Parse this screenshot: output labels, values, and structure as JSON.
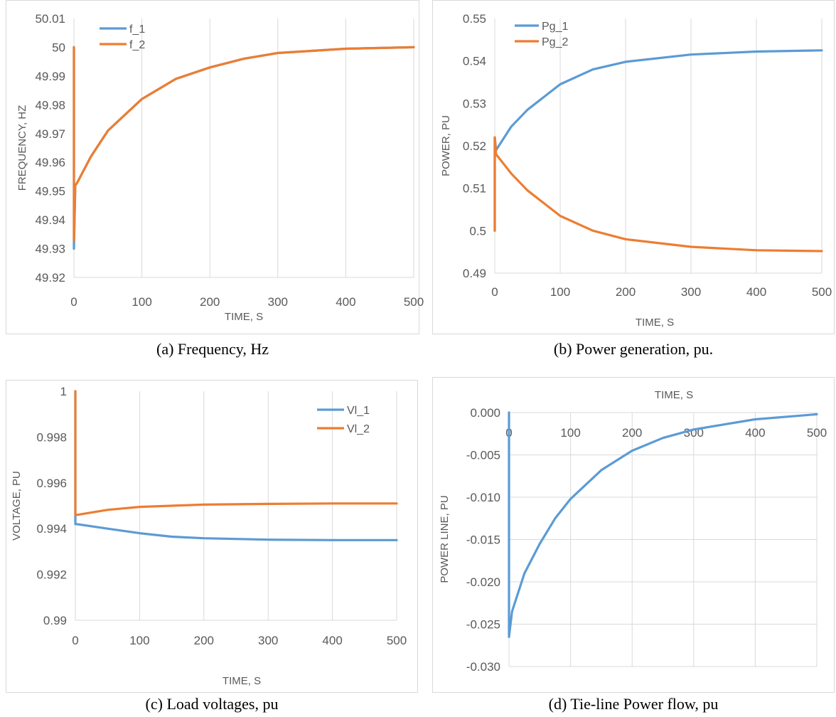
{
  "chart_data": [
    {
      "id": "a",
      "type": "line",
      "caption": "(a) Frequency, Hz",
      "xlabel": "TIME, S",
      "ylabel": "FREQUENCY, HZ",
      "xlim": [
        0,
        500
      ],
      "ylim": [
        49.92,
        50.01
      ],
      "xticks": [
        0,
        100,
        200,
        300,
        400,
        500
      ],
      "yticks": [
        49.92,
        49.93,
        49.94,
        49.95,
        49.96,
        49.97,
        49.98,
        49.99,
        50,
        50.01
      ],
      "xtick_labels": [
        "0",
        "100",
        "200",
        "300",
        "400",
        "500"
      ],
      "ytick_labels": [
        "49.92",
        "49.93",
        "49.94",
        "49.95",
        "49.96",
        "49.97",
        "49.98",
        "49.99",
        "50",
        "50.01"
      ],
      "grid": "vertical",
      "legend": "top-left",
      "series": [
        {
          "name": "f_1",
          "color": "#5B9BD5",
          "x": [
            0,
            0,
            2,
            5,
            25,
            50,
            100,
            150,
            200,
            250,
            300,
            400,
            500
          ],
          "y": [
            50,
            49.93,
            49.952,
            49.953,
            49.962,
            49.971,
            49.982,
            49.989,
            49.993,
            49.996,
            49.998,
            49.9995,
            50
          ]
        },
        {
          "name": "f_2",
          "color": "#ED7D31",
          "x": [
            0,
            0,
            2,
            5,
            25,
            50,
            100,
            150,
            200,
            250,
            300,
            400,
            500
          ],
          "y": [
            50,
            49.933,
            49.952,
            49.953,
            49.962,
            49.971,
            49.982,
            49.989,
            49.993,
            49.996,
            49.998,
            49.9995,
            50
          ]
        }
      ]
    },
    {
      "id": "b",
      "type": "line",
      "caption": "(b) Power generation, pu.",
      "xlabel": "TIME, S",
      "ylabel": "POWER, PU",
      "xlim": [
        0,
        500
      ],
      "ylim": [
        0.49,
        0.55
      ],
      "xticks": [
        0,
        100,
        200,
        300,
        400,
        500
      ],
      "yticks": [
        0.49,
        0.5,
        0.51,
        0.52,
        0.53,
        0.54,
        0.55
      ],
      "xtick_labels": [
        "0",
        "100",
        "200",
        "300",
        "400",
        "500"
      ],
      "ytick_labels": [
        "0.49",
        "0.5",
        "0.51",
        "0.52",
        "0.53",
        "0.54",
        "0.55"
      ],
      "grid": "vertical",
      "legend": "top-left",
      "series": [
        {
          "name": "Pg_1",
          "color": "#5B9BD5",
          "x": [
            0,
            0,
            2,
            25,
            50,
            100,
            150,
            200,
            300,
            400,
            500
          ],
          "y": [
            0.5,
            0.522,
            0.519,
            0.5245,
            0.5285,
            0.5345,
            0.538,
            0.5398,
            0.5415,
            0.5422,
            0.5425
          ]
        },
        {
          "name": "Pg_2",
          "color": "#ED7D31",
          "x": [
            0,
            0,
            2,
            25,
            50,
            100,
            150,
            200,
            300,
            400,
            500
          ],
          "y": [
            0.5,
            0.522,
            0.518,
            0.5135,
            0.5095,
            0.5035,
            0.5,
            0.498,
            0.4962,
            0.4954,
            0.4952
          ]
        }
      ]
    },
    {
      "id": "c",
      "type": "line",
      "caption": "(c) Load voltages, pu",
      "xlabel": "TIME, S",
      "ylabel": "VOLTAGE, PU",
      "xlim": [
        0,
        500
      ],
      "ylim": [
        0.99,
        1
      ],
      "xticks": [
        0,
        100,
        200,
        300,
        400,
        500
      ],
      "yticks": [
        0.99,
        0.992,
        0.994,
        0.996,
        0.998,
        1
      ],
      "xtick_labels": [
        "0",
        "100",
        "200",
        "300",
        "400",
        "500"
      ],
      "ytick_labels": [
        "0.99",
        "0.992",
        "0.994",
        "0.996",
        "0.998",
        "1"
      ],
      "grid": "vertical",
      "legend": "top-right",
      "series": [
        {
          "name": "Vl_1",
          "color": "#5B9BD5",
          "x": [
            0,
            0,
            2,
            50,
            100,
            150,
            200,
            300,
            400,
            500
          ],
          "y": [
            1,
            0.9942,
            0.9942,
            0.994,
            0.9938,
            0.99365,
            0.99358,
            0.99352,
            0.9935,
            0.9935
          ]
        },
        {
          "name": "Vl_2",
          "color": "#ED7D31",
          "x": [
            0,
            0,
            2,
            50,
            100,
            150,
            200,
            300,
            400,
            500
          ],
          "y": [
            1,
            0.9946,
            0.9946,
            0.99482,
            0.99495,
            0.995,
            0.99505,
            0.99508,
            0.9951,
            0.9951
          ]
        }
      ]
    },
    {
      "id": "d",
      "type": "line",
      "caption": "(d) Tie-line Power flow, pu",
      "xlabel": "TIME, S",
      "ylabel": "POWER LINE, PU",
      "xlim": [
        0,
        500
      ],
      "ylim": [
        -0.03,
        0
      ],
      "xticks": [
        0,
        100,
        200,
        300,
        400,
        500
      ],
      "yticks": [
        -0.03,
        -0.025,
        -0.02,
        -0.015,
        -0.01,
        -0.005,
        0
      ],
      "xtick_labels": [
        "0",
        "100",
        "200",
        "300",
        "400",
        "500"
      ],
      "ytick_labels": [
        "-0.030",
        "-0.025",
        "-0.020",
        "-0.015",
        "-0.010",
        "-0.005",
        "0.000"
      ],
      "grid": "both",
      "legend": "none",
      "series": [
        {
          "name": "",
          "color": "#5B9BD5",
          "x": [
            0,
            0,
            5,
            25,
            50,
            75,
            100,
            150,
            200,
            250,
            300,
            400,
            500
          ],
          "y": [
            0,
            -0.0265,
            -0.0235,
            -0.019,
            -0.0155,
            -0.0125,
            -0.0102,
            -0.0068,
            -0.0045,
            -0.003,
            -0.002,
            -0.0008,
            -0.0002
          ]
        }
      ]
    }
  ]
}
